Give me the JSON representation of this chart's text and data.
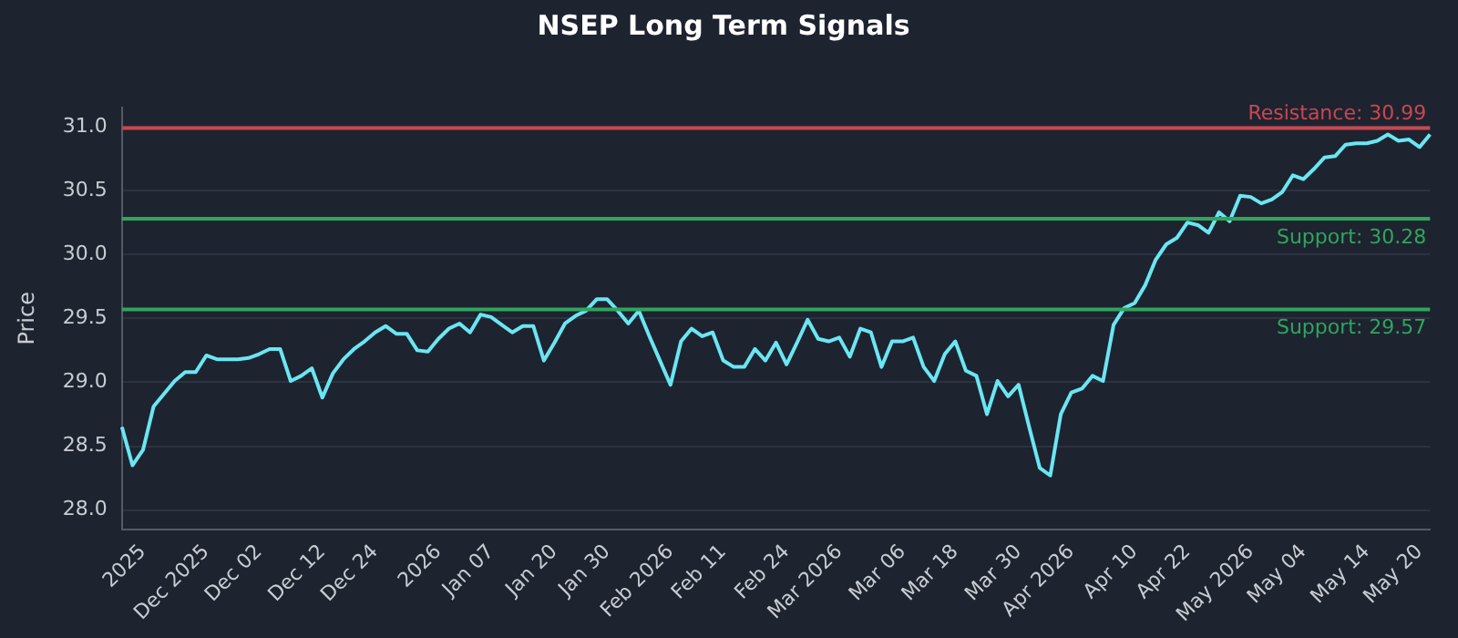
{
  "chart_data": {
    "type": "line",
    "title": "NSEP Long Term Signals",
    "ylabel": "Price",
    "categories": [
      null,
      null,
      "2025",
      null,
      null,
      null,
      null,
      null,
      "Dec 2025",
      null,
      null,
      null,
      null,
      "Dec 02",
      null,
      null,
      null,
      null,
      null,
      "Dec 12",
      null,
      null,
      null,
      null,
      "Dec 24",
      null,
      null,
      null,
      null,
      null,
      "2026",
      null,
      null,
      null,
      null,
      "Jan 07",
      null,
      null,
      null,
      null,
      null,
      "Jan 20",
      null,
      null,
      null,
      null,
      "Jan 30",
      null,
      null,
      null,
      null,
      null,
      "Feb 2026",
      null,
      null,
      null,
      null,
      "Feb 11",
      null,
      null,
      null,
      null,
      null,
      "Feb 24",
      null,
      null,
      null,
      null,
      "Mar 2026",
      null,
      null,
      null,
      null,
      null,
      "Mar 06",
      null,
      null,
      null,
      null,
      "Mar 18",
      null,
      null,
      null,
      null,
      null,
      "Mar 30",
      null,
      null,
      null,
      null,
      "Apr 2026",
      null,
      null,
      null,
      null,
      null,
      "Apr 10",
      null,
      null,
      null,
      null,
      "Apr 22",
      null,
      null,
      null,
      null,
      null,
      "May 2026",
      null,
      null,
      null,
      null,
      "May 04",
      null,
      null,
      null,
      null,
      null,
      "May 14",
      null,
      null,
      null,
      null,
      "May 20",
      null
    ],
    "series": [
      {
        "color": "#6ae6f2",
        "values": [
          28.65,
          28.35,
          28.47,
          28.81,
          28.91,
          29.01,
          29.08,
          29.08,
          29.21,
          29.18,
          29.18,
          29.18,
          29.19,
          29.22,
          29.26,
          29.26,
          29.01,
          29.05,
          29.11,
          28.88,
          29.07,
          29.18,
          29.26,
          29.32,
          29.39,
          29.44,
          29.38,
          29.38,
          29.25,
          29.24,
          29.34,
          29.42,
          29.46,
          29.39,
          29.53,
          29.51,
          29.45,
          29.39,
          29.44,
          29.44,
          29.17,
          29.31,
          29.46,
          29.52,
          29.56,
          29.65,
          29.65,
          29.56,
          29.46,
          29.56,
          29.36,
          29.17,
          28.98,
          29.32,
          29.42,
          29.36,
          29.39,
          29.17,
          29.12,
          29.12,
          29.26,
          29.17,
          29.31,
          29.14,
          29.31,
          29.49,
          29.34,
          29.32,
          29.35,
          29.2,
          29.42,
          29.39,
          29.12,
          29.32,
          29.32,
          29.35,
          29.12,
          29.01,
          29.22,
          29.32,
          29.09,
          29.05,
          28.75,
          29.01,
          28.89,
          28.98,
          28.65,
          28.33,
          28.27,
          28.75,
          28.92,
          28.95,
          29.05,
          29.01,
          29.45,
          29.58,
          29.62,
          29.76,
          29.96,
          30.08,
          30.13,
          30.25,
          30.23,
          30.17,
          30.33,
          30.26,
          30.46,
          30.45,
          30.4,
          30.43,
          30.49,
          30.62,
          30.59,
          30.67,
          30.76,
          30.77,
          30.86,
          30.87,
          30.87,
          30.89,
          30.94,
          30.89,
          30.9,
          30.84,
          30.94
        ]
      }
    ],
    "ylim": [
      27.85,
      31.15
    ],
    "yticks": [
      {
        "value": 28,
        "label": "28.0"
      },
      {
        "value": 28.5,
        "label": "28.5"
      },
      {
        "value": 29,
        "label": "29.0"
      },
      {
        "value": 29.5,
        "label": "29.5"
      },
      {
        "value": 30,
        "label": "30.0"
      },
      {
        "value": 30.5,
        "label": "30.5"
      },
      {
        "value": 31,
        "label": "31.0"
      }
    ],
    "ref_lines": [
      {
        "axis": "y",
        "value": 30.99,
        "label": "Resistance: 30.99",
        "color": "#c9474f"
      },
      {
        "axis": "y",
        "value": 30.28,
        "label": "Support: 30.28",
        "color": "#2fa55c"
      },
      {
        "axis": "y",
        "value": 29.57,
        "label": "Support: 29.57",
        "color": "#2fa55c"
      }
    ],
    "grid": "y",
    "legend": false,
    "marker": "none",
    "line_style": "solid"
  }
}
